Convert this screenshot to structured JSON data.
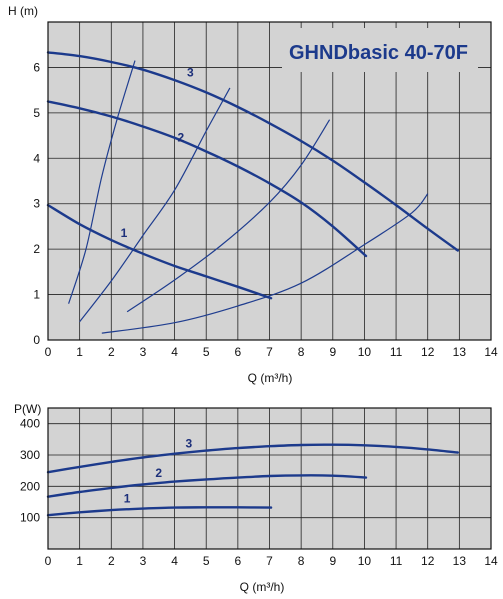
{
  "colors": {
    "curve": "#1c3a8c",
    "system_curve": "#1f3d8f",
    "plot_background": "#d3d3d3",
    "grid": "#222222",
    "model_title": "#1c3a8c"
  },
  "chart_data": [
    {
      "type": "line",
      "title": "GHNDbasic 40-70F",
      "title_main": "GHND",
      "title_suffix": "basic 40-70F",
      "ylabel": "H (m)",
      "xlabel": "Q (m³/h)",
      "xlim": [
        0,
        14
      ],
      "ylim": [
        0,
        7
      ],
      "x_ticks": [
        0,
        1,
        2,
        3,
        4,
        5,
        6,
        7,
        8,
        9,
        10,
        11,
        12,
        13,
        14
      ],
      "y_ticks": [
        0,
        1,
        2,
        3,
        4,
        5,
        6
      ],
      "grid": true,
      "series": [
        {
          "name": "1",
          "x": [
            0,
            1,
            2,
            3,
            4,
            5,
            6,
            7.05
          ],
          "y": [
            2.97,
            2.55,
            2.2,
            1.9,
            1.63,
            1.4,
            1.17,
            0.92
          ],
          "label_at": [
            2.4,
            2.27
          ]
        },
        {
          "name": "2",
          "x": [
            0,
            1,
            2,
            3,
            4,
            5,
            6,
            7,
            8,
            9,
            10.05
          ],
          "y": [
            5.25,
            5.1,
            4.92,
            4.7,
            4.45,
            4.15,
            3.82,
            3.45,
            3.03,
            2.5,
            1.85
          ],
          "label_at": [
            4.2,
            4.37
          ]
        },
        {
          "name": "3",
          "x": [
            0,
            1,
            2,
            3,
            4,
            5,
            6,
            7,
            8,
            9,
            10,
            11,
            12,
            12.95
          ],
          "y": [
            6.33,
            6.25,
            6.12,
            5.95,
            5.72,
            5.45,
            5.13,
            4.77,
            4.38,
            3.95,
            3.47,
            2.97,
            2.45,
            1.97
          ],
          "label_at": [
            4.5,
            5.8
          ]
        }
      ],
      "system_curves": [
        {
          "x": [
            0.65,
            1.2,
            1.7,
            2.2,
            2.75
          ],
          "y": [
            0.8,
            2.0,
            3.6,
            4.9,
            6.15
          ]
        },
        {
          "x": [
            1.0,
            2.0,
            3.0,
            4.0,
            5.0,
            5.75
          ],
          "y": [
            0.4,
            1.3,
            2.3,
            3.3,
            4.6,
            5.55
          ]
        },
        {
          "x": [
            2.5,
            4.0,
            5.5,
            7.0,
            8.0,
            8.9
          ],
          "y": [
            0.62,
            1.32,
            2.1,
            3.03,
            3.85,
            4.85
          ]
        },
        {
          "x": [
            1.7,
            4.0,
            6.0,
            8.0,
            10.0,
            11.5,
            12.0
          ],
          "y": [
            0.15,
            0.38,
            0.75,
            1.25,
            2.1,
            2.8,
            3.22
          ]
        }
      ]
    },
    {
      "type": "line",
      "ylabel": "P(W)",
      "xlabel": "Q (m³/h)",
      "xlim": [
        0,
        14
      ],
      "ylim": [
        0,
        450
      ],
      "x_ticks": [
        0,
        1,
        2,
        3,
        4,
        5,
        6,
        7,
        8,
        9,
        10,
        11,
        12,
        13,
        14
      ],
      "y_ticks": [
        100,
        200,
        300,
        400
      ],
      "grid": true,
      "series": [
        {
          "name": "1",
          "x": [
            0,
            1,
            2,
            3,
            4,
            5,
            6,
            7.05
          ],
          "y": [
            108,
            117,
            124,
            129,
            132,
            133,
            133,
            132
          ],
          "label_at": [
            2.5,
            148
          ]
        },
        {
          "name": "2",
          "x": [
            0,
            1,
            2,
            3,
            4,
            5,
            6,
            7,
            8,
            9,
            10.05
          ],
          "y": [
            167,
            182,
            195,
            206,
            215,
            222,
            228,
            233,
            235,
            234,
            228
          ],
          "label_at": [
            3.5,
            230
          ]
        },
        {
          "name": "3",
          "x": [
            0,
            1,
            2,
            3,
            4,
            5,
            6,
            7,
            8,
            9,
            10,
            11,
            12,
            12.95
          ],
          "y": [
            245,
            262,
            278,
            292,
            304,
            314,
            322,
            328,
            332,
            333,
            331,
            326,
            318,
            308
          ],
          "label_at": [
            4.45,
            324
          ]
        }
      ]
    }
  ]
}
